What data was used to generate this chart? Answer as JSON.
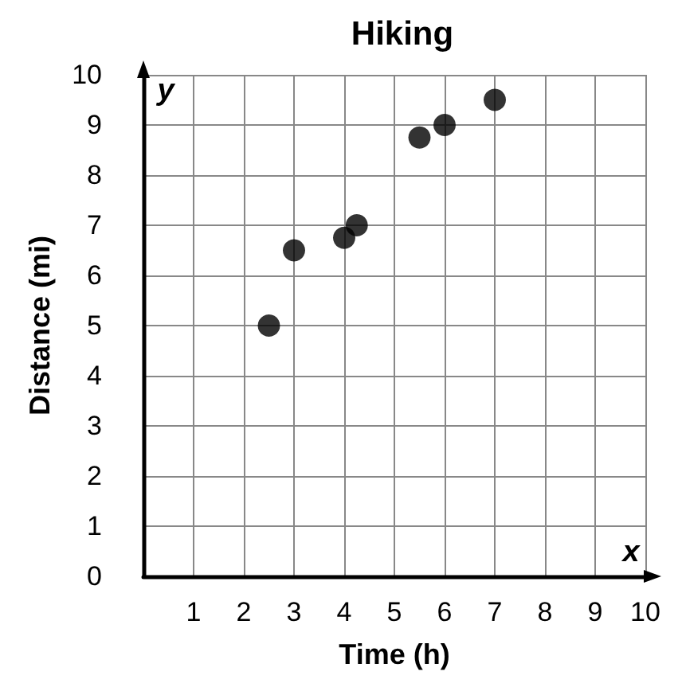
{
  "chart_data": {
    "type": "scatter",
    "title": "Hiking",
    "xlabel": "Time (h)",
    "ylabel": "Distance (mi)",
    "x": [
      2.5,
      3,
      4,
      4.25,
      5.5,
      6,
      7
    ],
    "series": [
      {
        "color": "#000000",
        "values": [
          5,
          6.5,
          6.75,
          7,
          8.75,
          9,
          9.5
        ]
      }
    ],
    "xlim": [
      0,
      10
    ],
    "ylim": [
      0,
      10
    ],
    "xticks": [
      {
        "value": 0,
        "label": null
      },
      1,
      2,
      3,
      4,
      5,
      6,
      7,
      8,
      9,
      10
    ],
    "yticks": [
      0,
      1,
      2,
      3,
      4,
      5,
      6,
      7,
      8,
      9,
      10
    ],
    "annotations": [
      "y",
      "x"
    ],
    "grid": true,
    "marker": "circle"
  }
}
